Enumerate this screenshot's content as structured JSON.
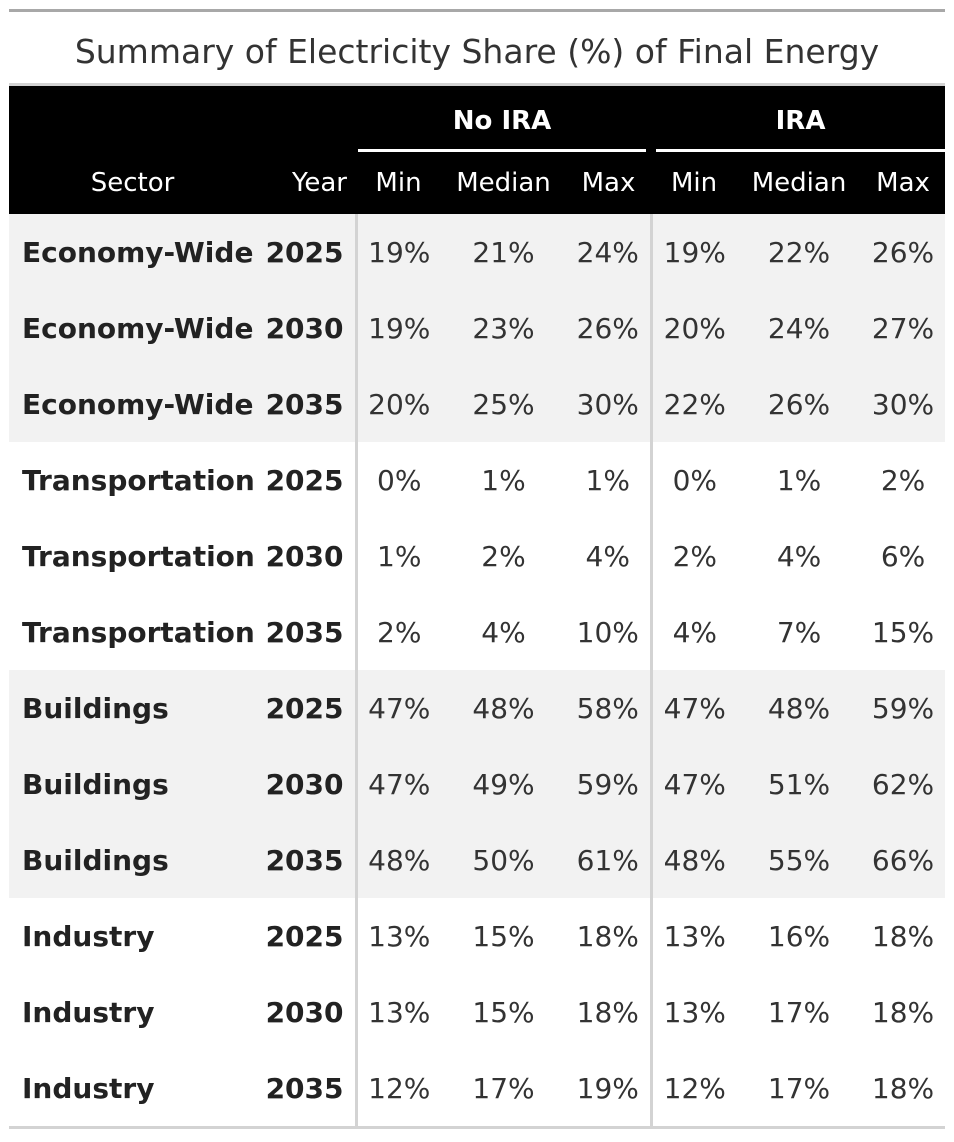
{
  "title": "Summary of Electricity Share (%) of Final Energy",
  "spanners": {
    "no_ira": "No IRA",
    "ira": "IRA"
  },
  "columns": {
    "sector": "Sector",
    "year": "Year",
    "no_min": "Min",
    "no_median": "Median",
    "no_max": "Max",
    "ira_min": "Min",
    "ira_median": "Median",
    "ira_max": "Max"
  },
  "rows": [
    {
      "sector": "Economy-Wide",
      "year": "2025",
      "no_min": "19%",
      "no_median": "21%",
      "no_max": "24%",
      "ira_min": "19%",
      "ira_median": "22%",
      "ira_max": "26%"
    },
    {
      "sector": "Economy-Wide",
      "year": "2030",
      "no_min": "19%",
      "no_median": "23%",
      "no_max": "26%",
      "ira_min": "20%",
      "ira_median": "24%",
      "ira_max": "27%"
    },
    {
      "sector": "Economy-Wide",
      "year": "2035",
      "no_min": "20%",
      "no_median": "25%",
      "no_max": "30%",
      "ira_min": "22%",
      "ira_median": "26%",
      "ira_max": "30%"
    },
    {
      "sector": "Transportation",
      "year": "2025",
      "no_min": "0%",
      "no_median": "1%",
      "no_max": "1%",
      "ira_min": "0%",
      "ira_median": "1%",
      "ira_max": "2%"
    },
    {
      "sector": "Transportation",
      "year": "2030",
      "no_min": "1%",
      "no_median": "2%",
      "no_max": "4%",
      "ira_min": "2%",
      "ira_median": "4%",
      "ira_max": "6%"
    },
    {
      "sector": "Transportation",
      "year": "2035",
      "no_min": "2%",
      "no_median": "4%",
      "no_max": "10%",
      "ira_min": "4%",
      "ira_median": "7%",
      "ira_max": "15%"
    },
    {
      "sector": "Buildings",
      "year": "2025",
      "no_min": "47%",
      "no_median": "48%",
      "no_max": "58%",
      "ira_min": "47%",
      "ira_median": "48%",
      "ira_max": "59%"
    },
    {
      "sector": "Buildings",
      "year": "2030",
      "no_min": "47%",
      "no_median": "49%",
      "no_max": "59%",
      "ira_min": "47%",
      "ira_median": "51%",
      "ira_max": "62%"
    },
    {
      "sector": "Buildings",
      "year": "2035",
      "no_min": "48%",
      "no_median": "50%",
      "no_max": "61%",
      "ira_min": "48%",
      "ira_median": "55%",
      "ira_max": "66%"
    },
    {
      "sector": "Industry",
      "year": "2025",
      "no_min": "13%",
      "no_median": "15%",
      "no_max": "18%",
      "ira_min": "13%",
      "ira_median": "16%",
      "ira_max": "18%"
    },
    {
      "sector": "Industry",
      "year": "2030",
      "no_min": "13%",
      "no_median": "15%",
      "no_max": "18%",
      "ira_min": "13%",
      "ira_median": "17%",
      "ira_max": "18%"
    },
    {
      "sector": "Industry",
      "year": "2035",
      "no_min": "12%",
      "no_median": "17%",
      "no_max": "19%",
      "ira_min": "12%",
      "ira_median": "17%",
      "ira_max": "18%"
    }
  ],
  "colors": {
    "header_bg": "#000000",
    "header_text": "#ffffff",
    "stripe_bg": "#f2f2f2",
    "rule": "#d3d3d3",
    "text": "#333333"
  }
}
